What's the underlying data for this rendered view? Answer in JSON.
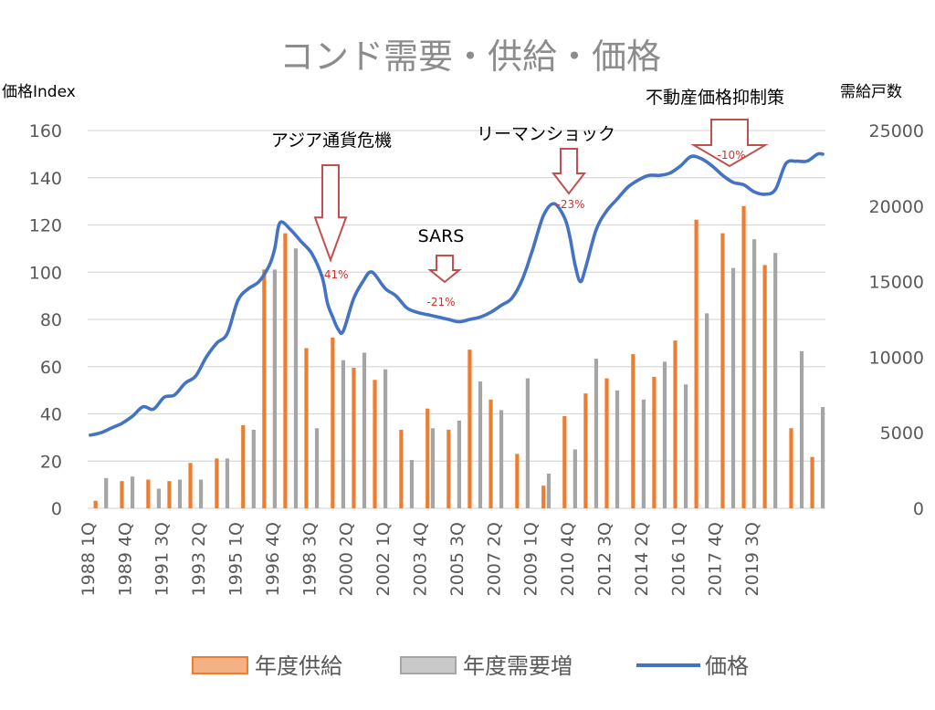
{
  "chart_data": {
    "type": "bar+line",
    "title": "コンド需要・供給・価格",
    "left_axis_title": "価格Index",
    "right_axis_title": "需給戸数",
    "left_ylim": [
      0,
      160
    ],
    "right_ylim": [
      0,
      25000
    ],
    "left_ticks": [
      "0",
      "20",
      "40",
      "60",
      "80",
      "100",
      "120",
      "140",
      "160"
    ],
    "right_ticks": [
      "0",
      "5000",
      "10000",
      "15000",
      "20000",
      "25000"
    ],
    "x_start": {
      "year": 1988,
      "quarter": 1
    },
    "x_count": 127,
    "x_tick_labels": [
      "1988 1Q",
      "1989 4Q",
      "1991 3Q",
      "1993 2Q",
      "1995 1Q",
      "1996 4Q",
      "1998 3Q",
      "2000 2Q",
      "2002 1Q",
      "2003 4Q",
      "2005 3Q",
      "2007 2Q",
      "2009 1Q",
      "2010 4Q",
      "2012 3Q",
      "2014 2Q",
      "2016 1Q",
      "2017 4Q",
      "2019 3Q"
    ],
    "legend": [
      "年度供給",
      "年度需要増",
      "価格"
    ],
    "colors": {
      "supply": "#ed7d31",
      "demand": "#a5a5a5",
      "price": "#4472c4",
      "arrow": "#c0504d",
      "pct": "#d03030"
    },
    "supply": [
      {
        "i": 1,
        "v": 500
      },
      {
        "i": 6,
        "v": 1800
      },
      {
        "i": 11,
        "v": 1900
      },
      {
        "i": 15,
        "v": 1800
      },
      {
        "i": 19,
        "v": 3000
      },
      {
        "i": 24,
        "v": 3300
      },
      {
        "i": 29,
        "v": 5500
      },
      {
        "i": 33,
        "v": 15800
      },
      {
        "i": 37,
        "v": 18200
      },
      {
        "i": 41,
        "v": 10600
      },
      {
        "i": 46,
        "v": 11300
      },
      {
        "i": 50,
        "v": 9300
      },
      {
        "i": 54,
        "v": 8500
      },
      {
        "i": 59,
        "v": 5200
      },
      {
        "i": 64,
        "v": 6600
      },
      {
        "i": 68,
        "v": 5200
      },
      {
        "i": 72,
        "v": 10500
      },
      {
        "i": 76,
        "v": 7200
      },
      {
        "i": 81,
        "v": 3600
      },
      {
        "i": 86,
        "v": 1500
      },
      {
        "i": 90,
        "v": 6100
      },
      {
        "i": 94,
        "v": 7600
      },
      {
        "i": 98,
        "v": 8600
      },
      {
        "i": 103,
        "v": 10200
      },
      {
        "i": 107,
        "v": 8700
      },
      {
        "i": 111,
        "v": 11100
      },
      {
        "i": 115,
        "v": 19100
      },
      {
        "i": 120,
        "v": 18200
      },
      {
        "i": 124,
        "v": 20000
      },
      {
        "i": 128,
        "v": 16100
      },
      {
        "i": 133,
        "v": 5300
      },
      {
        "i": 137,
        "v": 3400
      }
    ],
    "demand": [
      {
        "i": 3,
        "v": 2000
      },
      {
        "i": 8,
        "v": 2100
      },
      {
        "i": 13,
        "v": 1300
      },
      {
        "i": 17,
        "v": 1900
      },
      {
        "i": 21,
        "v": 1900
      },
      {
        "i": 26,
        "v": 3300
      },
      {
        "i": 31,
        "v": 5200
      },
      {
        "i": 35,
        "v": 15800
      },
      {
        "i": 39,
        "v": 17200
      },
      {
        "i": 43,
        "v": 5300
      },
      {
        "i": 48,
        "v": 9800
      },
      {
        "i": 52,
        "v": 10300
      },
      {
        "i": 56,
        "v": 9200
      },
      {
        "i": 61,
        "v": 3200
      },
      {
        "i": 65,
        "v": 5300
      },
      {
        "i": 70,
        "v": 5800
      },
      {
        "i": 74,
        "v": 8400
      },
      {
        "i": 78,
        "v": 6500
      },
      {
        "i": 83,
        "v": 8600
      },
      {
        "i": 87,
        "v": 2300
      },
      {
        "i": 92,
        "v": 3900
      },
      {
        "i": 96,
        "v": 9900
      },
      {
        "i": 100,
        "v": 7800
      },
      {
        "i": 105,
        "v": 7200
      },
      {
        "i": 109,
        "v": 9700
      },
      {
        "i": 113,
        "v": 8200
      },
      {
        "i": 117,
        "v": 12900
      },
      {
        "i": 122,
        "v": 15900
      },
      {
        "i": 126,
        "v": 17800
      },
      {
        "i": 130,
        "v": 16900
      },
      {
        "i": 135,
        "v": 10400
      },
      {
        "i": 139,
        "v": 6700
      }
    ],
    "price": [
      [
        0,
        31
      ],
      [
        2,
        32
      ],
      [
        4,
        34
      ],
      [
        6,
        36
      ],
      [
        8,
        39
      ],
      [
        10,
        43
      ],
      [
        12,
        42
      ],
      [
        14,
        47
      ],
      [
        16,
        48
      ],
      [
        18,
        53
      ],
      [
        20,
        56
      ],
      [
        22,
        64
      ],
      [
        24,
        70
      ],
      [
        26,
        74
      ],
      [
        28,
        88
      ],
      [
        30,
        93
      ],
      [
        32,
        96
      ],
      [
        34,
        103
      ],
      [
        35,
        110
      ],
      [
        36,
        121
      ],
      [
        38,
        118
      ],
      [
        40,
        113
      ],
      [
        42,
        108
      ],
      [
        44,
        98
      ],
      [
        45,
        87
      ],
      [
        46,
        81
      ],
      [
        47,
        76
      ],
      [
        48,
        75
      ],
      [
        50,
        89
      ],
      [
        52,
        97
      ],
      [
        53,
        100
      ],
      [
        54,
        99
      ],
      [
        56,
        93
      ],
      [
        58,
        90
      ],
      [
        60,
        85
      ],
      [
        62,
        83
      ],
      [
        64,
        82
      ],
      [
        66,
        81
      ],
      [
        68,
        80
      ],
      [
        70,
        79
      ],
      [
        72,
        80
      ],
      [
        74,
        81
      ],
      [
        76,
        83
      ],
      [
        78,
        86
      ],
      [
        80,
        89
      ],
      [
        82,
        97
      ],
      [
        84,
        110
      ],
      [
        86,
        124
      ],
      [
        88,
        129
      ],
      [
        90,
        123
      ],
      [
        91,
        115
      ],
      [
        92,
        103
      ],
      [
        93,
        96
      ],
      [
        94,
        102
      ],
      [
        96,
        118
      ],
      [
        98,
        126
      ],
      [
        100,
        131
      ],
      [
        102,
        136
      ],
      [
        104,
        139
      ],
      [
        106,
        141
      ],
      [
        108,
        141
      ],
      [
        110,
        142
      ],
      [
        112,
        145
      ],
      [
        114,
        149
      ],
      [
        116,
        148
      ],
      [
        118,
        145
      ],
      [
        120,
        141
      ],
      [
        122,
        138
      ],
      [
        124,
        137
      ],
      [
        126,
        134
      ],
      [
        128,
        133
      ],
      [
        130,
        135
      ],
      [
        132,
        146
      ],
      [
        134,
        147
      ],
      [
        136,
        147
      ],
      [
        138,
        150
      ],
      [
        139,
        150
      ]
    ],
    "annotations": [
      {
        "label": "アジア通貨危機",
        "pct": "-41%"
      },
      {
        "label": "SARS",
        "pct": "-21%"
      },
      {
        "label": "リーマンショック",
        "pct": "-23%"
      },
      {
        "label": "不動産価格抑制策",
        "pct": "-10%"
      }
    ]
  }
}
